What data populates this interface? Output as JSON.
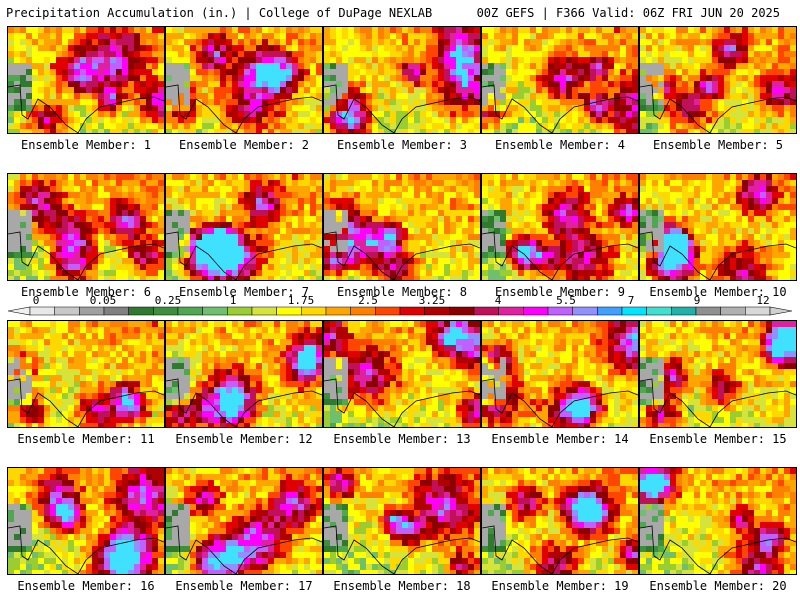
{
  "header": {
    "title_left": "Precipitation Accumulation (in.) | College of DuPage NEXLAB",
    "title_right": "00Z GEFS | F366 Valid: 06Z FRI JUN 20 2025"
  },
  "colorbar": {
    "tick_labels": [
      "0",
      "0.05",
      "0.25",
      "1",
      "1.75",
      "2.5",
      "3.25",
      "4",
      "5.5",
      "7",
      "9",
      "12"
    ],
    "colors": [
      "#e8e8e8",
      "#c8c8c8",
      "#a0a0a0",
      "#808080",
      "#2f7a2f",
      "#3d8f3d",
      "#4fa84f",
      "#6ec06e",
      "#9acd32",
      "#d6e33a",
      "#ffff00",
      "#ffd800",
      "#ffa500",
      "#ff7f00",
      "#ff4500",
      "#e00000",
      "#b00000",
      "#8b0000",
      "#c0105a",
      "#e020a0",
      "#ff00ff",
      "#c060ff",
      "#9090ff",
      "#40a0ff",
      "#00e5ff",
      "#40e0d0",
      "#20b2aa",
      "#909090",
      "#b0b0b0",
      "#d8d8d8"
    ]
  },
  "members": [
    {
      "label": "Ensemble Member: 1"
    },
    {
      "label": "Ensemble Member: 2"
    },
    {
      "label": "Ensemble Member: 3"
    },
    {
      "label": "Ensemble Member: 4"
    },
    {
      "label": "Ensemble Member: 5"
    },
    {
      "label": "Ensemble Member: 6"
    },
    {
      "label": "Ensemble Member: 7"
    },
    {
      "label": "Ensemble Member: 8"
    },
    {
      "label": "Ensemble Member: 9"
    },
    {
      "label": "Ensemble Member: 10"
    },
    {
      "label": "Ensemble Member: 11"
    },
    {
      "label": "Ensemble Member: 12"
    },
    {
      "label": "Ensemble Member: 13"
    },
    {
      "label": "Ensemble Member: 14"
    },
    {
      "label": "Ensemble Member: 15"
    },
    {
      "label": "Ensemble Member: 16"
    },
    {
      "label": "Ensemble Member: 17"
    },
    {
      "label": "Ensemble Member: 18"
    },
    {
      "label": "Ensemble Member: 19"
    },
    {
      "label": "Ensemble Member: 20"
    }
  ]
}
